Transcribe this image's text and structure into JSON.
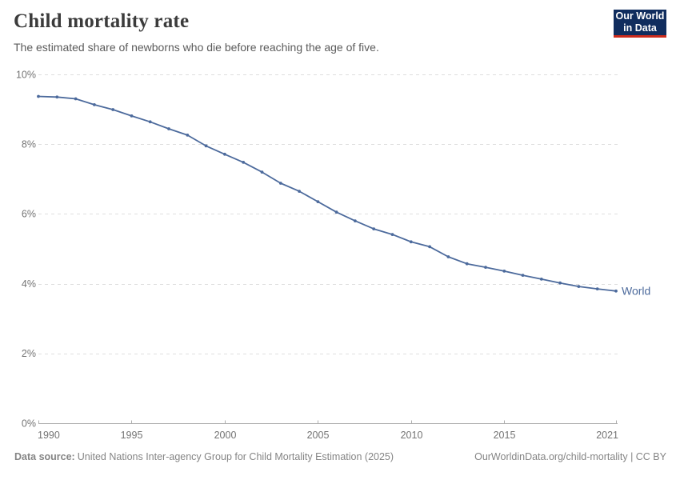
{
  "header": {
    "title": "Child mortality rate",
    "subtitle": "The estimated share of newborns who die before reaching the age of five.",
    "logo": {
      "line1": "Our World",
      "line2": "in Data"
    }
  },
  "chart_data": {
    "type": "line",
    "title": "Child mortality rate",
    "subtitle": "The estimated share of newborns who die before reaching the age of five.",
    "xlabel": "",
    "ylabel": "",
    "xlim": [
      1990,
      2021
    ],
    "ylim": [
      0,
      10
    ],
    "grid": "horizontal-dashed",
    "legend_position": "end-of-line-label",
    "x_ticks": [
      1990,
      1995,
      2000,
      2005,
      2010,
      2015,
      2021
    ],
    "y_ticks": [
      0,
      2,
      4,
      6,
      8,
      10
    ],
    "y_tick_suffix": "%",
    "series": [
      {
        "name": "World",
        "color": "#4c6a9c",
        "x": [
          1990,
          1991,
          1992,
          1993,
          1994,
          1995,
          1996,
          1997,
          1998,
          1999,
          2000,
          2001,
          2002,
          2003,
          2004,
          2005,
          2006,
          2007,
          2008,
          2009,
          2010,
          2011,
          2012,
          2013,
          2014,
          2015,
          2016,
          2017,
          2018,
          2019,
          2020,
          2021
        ],
        "values": [
          9.37,
          9.35,
          9.3,
          9.13,
          8.99,
          8.81,
          8.64,
          8.44,
          8.26,
          7.95,
          7.71,
          7.48,
          7.2,
          6.88,
          6.65,
          6.35,
          6.05,
          5.8,
          5.57,
          5.41,
          5.2,
          5.06,
          4.77,
          4.57,
          4.47,
          4.36,
          4.24,
          4.13,
          4.02,
          3.92,
          3.85,
          3.79
        ]
      }
    ]
  },
  "footer": {
    "source_label": "Data source:",
    "source_text": "United Nations Inter-agency Group for Child Mortality Estimation (2025)",
    "link_text": "OurWorldinData.org/child-mortality | CC BY"
  },
  "colors": {
    "title_text": "#3b3b3b",
    "subtitle_text": "#5b5b5b",
    "footer_text": "#858585",
    "tick_text": "#737373",
    "grid": "#dedede",
    "axis": "#aeaeae",
    "line_world": "#4c6a9c",
    "logo_bg": "#102d5e",
    "logo_red": "#cc2b1c"
  }
}
